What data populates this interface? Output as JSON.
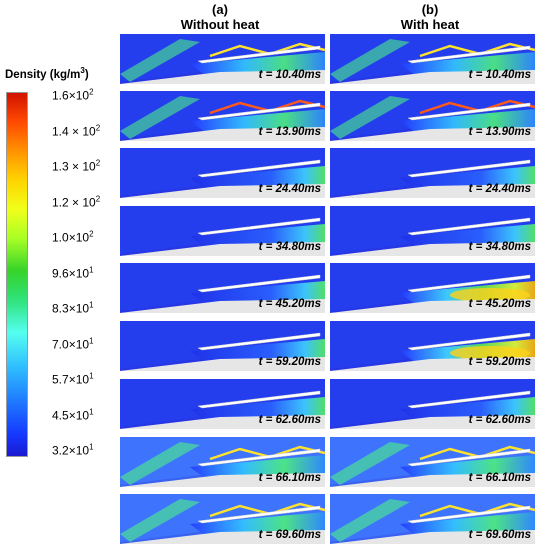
{
  "columns": [
    {
      "tag": "(a)",
      "title": "Without heat"
    },
    {
      "tag": "(b)",
      "title": "With heat"
    }
  ],
  "legend": {
    "title": "Density (kg/m",
    "title_sup": "3",
    "title_close": ")",
    "ticks": [
      {
        "mant": "1.6",
        "sep": "×",
        "exp": "2",
        "value": 160
      },
      {
        "mant": "1.4",
        "sep": " × ",
        "exp": "2",
        "value": 140
      },
      {
        "mant": "1.3",
        "sep": " × ",
        "exp": "2",
        "value": 130
      },
      {
        "mant": "1.2",
        "sep": " × ",
        "exp": "2",
        "value": 120
      },
      {
        "mant": "1.0",
        "sep": "×",
        "exp": "2",
        "value": 100
      },
      {
        "mant": "9.6",
        "sep": "×",
        "exp": "1",
        "value": 96
      },
      {
        "mant": "8.3",
        "sep": "×",
        "exp": "1",
        "value": 83
      },
      {
        "mant": "7.0",
        "sep": "×",
        "exp": "1",
        "value": 70
      },
      {
        "mant": "5.7",
        "sep": "×",
        "exp": "1",
        "value": 57
      },
      {
        "mant": "4.5",
        "sep": "×",
        "exp": "1",
        "value": 45
      },
      {
        "mant": "3.2",
        "sep": "×",
        "exp": "1",
        "value": 32
      }
    ],
    "base": "10",
    "colors": [
      "#d11200",
      "#ff9b00",
      "#f1ff1a",
      "#36d32a",
      "#54fff0",
      "#1e72ff",
      "#1a1ad0"
    ]
  },
  "times": [
    "t = 10.40ms",
    "t = 13.90ms",
    "t = 24.40ms",
    "t = 34.80ms",
    "t = 45.20ms",
    "t = 59.20ms",
    "t = 62.60ms",
    "t = 66.10ms",
    "t = 69.60ms"
  ]
}
